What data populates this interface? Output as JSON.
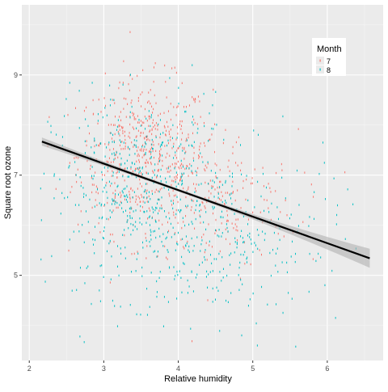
{
  "chart_data": {
    "type": "scatter",
    "xlabel": "Relative humidity",
    "ylabel": "Square root ozone",
    "xlim": [
      1.9,
      6.75
    ],
    "ylim": [
      3.3,
      10.4
    ],
    "x_ticks": [
      2,
      3,
      4,
      5,
      6
    ],
    "y_ticks": [
      5,
      7,
      9
    ],
    "grid": true,
    "legend": {
      "title": "Month",
      "placement": "top-right",
      "entries": [
        {
          "label": "7",
          "color": "#F8766D"
        },
        {
          "label": "8",
          "color": "#00BFC4"
        }
      ]
    },
    "series": [
      {
        "name": "7",
        "color": "#F8766D",
        "clusters": [
          {
            "x_mean": 3.55,
            "x_sd": 0.45,
            "y_mean": 7.4,
            "y_sd": 0.75,
            "n": 520
          },
          {
            "x_mean": 4.5,
            "x_sd": 0.55,
            "y_mean": 6.5,
            "y_sd": 0.7,
            "n": 200
          }
        ]
      },
      {
        "name": "8",
        "color": "#00BFC4",
        "clusters": [
          {
            "x_mean": 3.5,
            "x_sd": 0.6,
            "y_mean": 6.6,
            "y_sd": 1.0,
            "n": 520
          },
          {
            "x_mean": 4.8,
            "x_sd": 0.7,
            "y_mean": 5.7,
            "y_sd": 0.85,
            "n": 220
          }
        ]
      }
    ],
    "trend_line": {
      "color": "#000000",
      "band_color": "#b0b0b0",
      "points": [
        [
          2.17,
          7.67
        ],
        [
          6.57,
          5.34
        ]
      ],
      "ci_halfwidth_ends": [
        0.1,
        0.16
      ],
      "ci_halfwidth_center": 0.03
    }
  },
  "colors": {
    "panel_bg": "#EBEBEB",
    "grid_major": "#FFFFFF",
    "axis_text": "#4D4D4D",
    "title_text": "#000000"
  }
}
